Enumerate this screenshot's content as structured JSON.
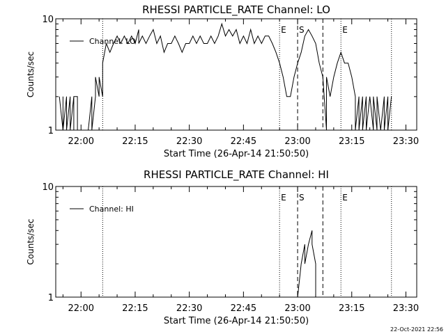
{
  "footer_timestamp": "22-Oct-2021 22:56",
  "chart_data": [
    {
      "type": "line",
      "title": "RHESSI PARTICLE_RATE Channel: LO",
      "xlabel": "Start Time (26-Apr-14 21:50:50)",
      "ylabel": "Counts/sec",
      "y_scale": "log",
      "ylim": [
        1,
        10
      ],
      "y_ticks": [
        "1",
        "10"
      ],
      "xlim": [
        "21:53",
        "23:33"
      ],
      "x_ticks": [
        "22:00",
        "22:15",
        "22:30",
        "22:45",
        "23:00",
        "23:15",
        "23:30"
      ],
      "legend": {
        "placement": "top-left",
        "entries": [
          "Channel: LO"
        ]
      },
      "markers": [
        {
          "time": "22:06",
          "style": "dotted",
          "label": ""
        },
        {
          "time": "22:55",
          "style": "dotted",
          "label": "E"
        },
        {
          "time": "23:00",
          "style": "dashed",
          "label": "S"
        },
        {
          "time": "23:07",
          "style": "dashed",
          "label": ""
        },
        {
          "time": "23:12",
          "style": "dotted",
          "label": "E"
        },
        {
          "time": "23:26",
          "style": "dotted",
          "label": ""
        }
      ],
      "series": [
        {
          "name": "Channel: LO",
          "points": [
            [
              "21:54",
              2
            ],
            [
              "21:55",
              1
            ],
            [
              "21:55",
              2
            ],
            [
              "21:55",
              1
            ],
            [
              "21:56",
              2
            ],
            [
              "21:56",
              1
            ],
            [
              "21:57",
              2
            ],
            [
              "21:57",
              1
            ],
            [
              "21:58",
              2
            ],
            [
              "21:58",
              1
            ],
            [
              "21:58",
              2
            ],
            [
              "21:59",
              2
            ],
            [
              "21:59",
              1
            ],
            [
              "22:00",
              1
            ],
            [
              "22:01",
              1
            ],
            [
              "22:02",
              1
            ],
            [
              "22:03",
              2
            ],
            [
              "22:03",
              1
            ],
            [
              "22:04",
              2
            ],
            [
              "22:04",
              3
            ],
            [
              "22:05",
              2
            ],
            [
              "22:05",
              3
            ],
            [
              "22:06",
              2
            ],
            [
              "22:06",
              3
            ],
            [
              "22:06",
              4
            ],
            [
              "22:07",
              6
            ],
            [
              "22:08",
              5
            ],
            [
              "22:09",
              6
            ],
            [
              "22:10",
              7
            ],
            [
              "22:11",
              6
            ],
            [
              "22:12",
              7
            ],
            [
              "22:13",
              6
            ],
            [
              "22:14",
              7
            ],
            [
              "22:15",
              6
            ],
            [
              "22:16",
              8
            ],
            [
              "22:16",
              6
            ],
            [
              "22:17",
              7
            ],
            [
              "22:18",
              6
            ],
            [
              "22:19",
              7
            ],
            [
              "22:20",
              8
            ],
            [
              "22:21",
              6
            ],
            [
              "22:22",
              7
            ],
            [
              "22:23",
              5
            ],
            [
              "22:24",
              6
            ],
            [
              "22:25",
              6
            ],
            [
              "22:26",
              7
            ],
            [
              "22:27",
              6
            ],
            [
              "22:28",
              5
            ],
            [
              "22:29",
              6
            ],
            [
              "22:30",
              6
            ],
            [
              "22:31",
              7
            ],
            [
              "22:32",
              6
            ],
            [
              "22:33",
              7
            ],
            [
              "22:34",
              6
            ],
            [
              "22:35",
              6
            ],
            [
              "22:36",
              7
            ],
            [
              "22:37",
              6
            ],
            [
              "22:38",
              7
            ],
            [
              "22:39",
              9
            ],
            [
              "22:40",
              7
            ],
            [
              "22:41",
              8
            ],
            [
              "22:42",
              7
            ],
            [
              "22:43",
              8
            ],
            [
              "22:44",
              6
            ],
            [
              "22:45",
              7
            ],
            [
              "22:46",
              6
            ],
            [
              "22:47",
              8
            ],
            [
              "22:48",
              6
            ],
            [
              "22:49",
              7
            ],
            [
              "22:50",
              6
            ],
            [
              "22:51",
              7
            ],
            [
              "22:52",
              7
            ],
            [
              "22:53",
              6
            ],
            [
              "22:54",
              5
            ],
            [
              "22:55",
              4
            ],
            [
              "22:56",
              3
            ],
            [
              "22:57",
              2
            ],
            [
              "22:58",
              2
            ],
            [
              "22:59",
              3
            ],
            [
              "23:00",
              4
            ],
            [
              "23:01",
              5
            ],
            [
              "23:02",
              7
            ],
            [
              "23:03",
              8
            ],
            [
              "23:04",
              7
            ],
            [
              "23:05",
              6
            ],
            [
              "23:06",
              4
            ],
            [
              "23:07",
              3
            ],
            [
              "23:08",
              1
            ],
            [
              "23:08",
              3
            ],
            [
              "23:09",
              2
            ],
            [
              "23:10",
              3
            ],
            [
              "23:11",
              4
            ],
            [
              "23:12",
              5
            ],
            [
              "23:13",
              4
            ],
            [
              "23:14",
              4
            ],
            [
              "23:15",
              3
            ],
            [
              "23:16",
              2
            ],
            [
              "23:16",
              1
            ],
            [
              "23:17",
              2
            ],
            [
              "23:17",
              1
            ],
            [
              "23:18",
              2
            ],
            [
              "23:18",
              1
            ],
            [
              "23:19",
              2
            ],
            [
              "23:19",
              1
            ],
            [
              "23:20",
              2
            ],
            [
              "23:21",
              1
            ],
            [
              "23:21",
              2
            ],
            [
              "23:22",
              1
            ],
            [
              "23:22",
              2
            ],
            [
              "23:23",
              1
            ],
            [
              "23:24",
              2
            ],
            [
              "23:24",
              1
            ],
            [
              "23:25",
              2
            ],
            [
              "23:25",
              1
            ],
            [
              "23:26",
              2
            ]
          ]
        }
      ]
    },
    {
      "type": "line",
      "title": "RHESSI PARTICLE_RATE Channel: HI",
      "xlabel": "Start Time (26-Apr-14 21:50:50)",
      "ylabel": "Counts/sec",
      "y_scale": "log",
      "ylim": [
        1,
        10
      ],
      "y_ticks": [
        "1",
        "10"
      ],
      "xlim": [
        "21:53",
        "23:33"
      ],
      "x_ticks": [
        "22:00",
        "22:15",
        "22:30",
        "22:45",
        "23:00",
        "23:15",
        "23:30"
      ],
      "legend": {
        "placement": "top-left",
        "entries": [
          "Channel: HI"
        ]
      },
      "markers": [
        {
          "time": "22:06",
          "style": "dotted",
          "label": ""
        },
        {
          "time": "22:55",
          "style": "dotted",
          "label": "E"
        },
        {
          "time": "23:00",
          "style": "dashed",
          "label": "S"
        },
        {
          "time": "23:07",
          "style": "dashed",
          "label": ""
        },
        {
          "time": "23:12",
          "style": "dotted",
          "label": "E"
        },
        {
          "time": "23:26",
          "style": "dotted",
          "label": ""
        }
      ],
      "series": [
        {
          "name": "Channel: HI",
          "points": [
            [
              "23:00",
              1
            ],
            [
              "23:01",
              2
            ],
            [
              "23:02",
              3
            ],
            [
              "23:02",
              2
            ],
            [
              "23:03",
              3
            ],
            [
              "23:04",
              4
            ],
            [
              "23:04",
              3
            ],
            [
              "23:05",
              2
            ],
            [
              "23:05",
              1
            ]
          ]
        }
      ]
    }
  ]
}
